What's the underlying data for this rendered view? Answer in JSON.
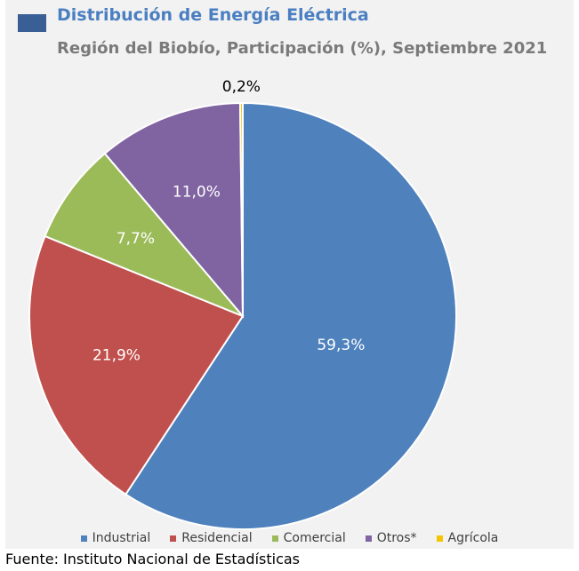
{
  "header": {
    "title": "Distribución de Energía Eléctrica",
    "subtitle": "Región del Biobío, Participación (%),  Septiembre 2021"
  },
  "chart_data": {
    "type": "pie",
    "categories": [
      "Industrial",
      "Residencial",
      "Comercial",
      "Otros*",
      "Agrícola"
    ],
    "values": [
      59.3,
      21.9,
      7.7,
      11.0,
      0.2
    ],
    "labels": [
      "59,3%",
      "21,9%",
      "7,7%",
      "11,0%",
      "0,2%"
    ],
    "colors": [
      "#4f81bd",
      "#c0504d",
      "#9bbb59",
      "#8064a2",
      "#f5c400"
    ],
    "start": "12 o'clock, clockwise",
    "legend_position": "bottom"
  },
  "footer": {
    "source": "Fuente: Instituto Nacional de Estadísticas"
  },
  "colors": {
    "title": "#4a7fc1",
    "subtitle": "#7a7a7a",
    "panel_background": "#f2f2f2",
    "title_marker": "#3a5f96"
  }
}
